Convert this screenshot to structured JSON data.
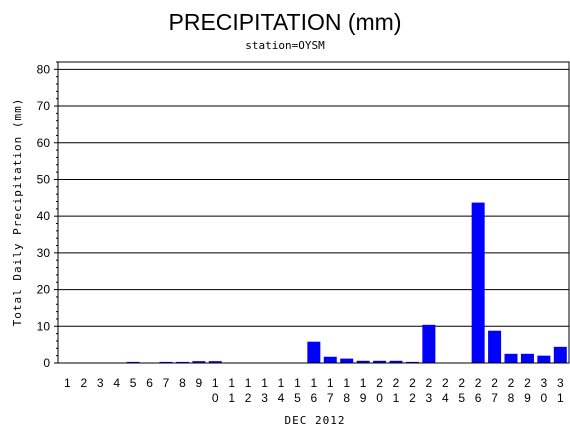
{
  "chart_data": {
    "type": "bar",
    "title": "PRECIPITATION (mm)",
    "subtitle": "station=OYSM",
    "xlabel": "DEC 2012",
    "ylabel": "Total Daily Precipitation (mm)",
    "ylim": [
      0,
      82
    ],
    "yticks": [
      0,
      10,
      20,
      30,
      40,
      50,
      60,
      70,
      80
    ],
    "grid": "horizontal",
    "bar_color": "#0000ff",
    "categories": [
      "1",
      "2",
      "3",
      "4",
      "5",
      "6",
      "7",
      "8",
      "9",
      "10",
      "11",
      "12",
      "13",
      "14",
      "15",
      "16",
      "17",
      "18",
      "19",
      "20",
      "21",
      "22",
      "23",
      "24",
      "25",
      "26",
      "27",
      "28",
      "29",
      "30",
      "31"
    ],
    "values": [
      0,
      0,
      0,
      0,
      0.3,
      0,
      0.3,
      0.3,
      0.5,
      0.5,
      0,
      0,
      0,
      0,
      0,
      5.8,
      1.7,
      1.2,
      0.6,
      0.6,
      0.6,
      0.3,
      10.4,
      0,
      0,
      43.7,
      8.8,
      2.5,
      2.5,
      2.0,
      4.4
    ]
  }
}
